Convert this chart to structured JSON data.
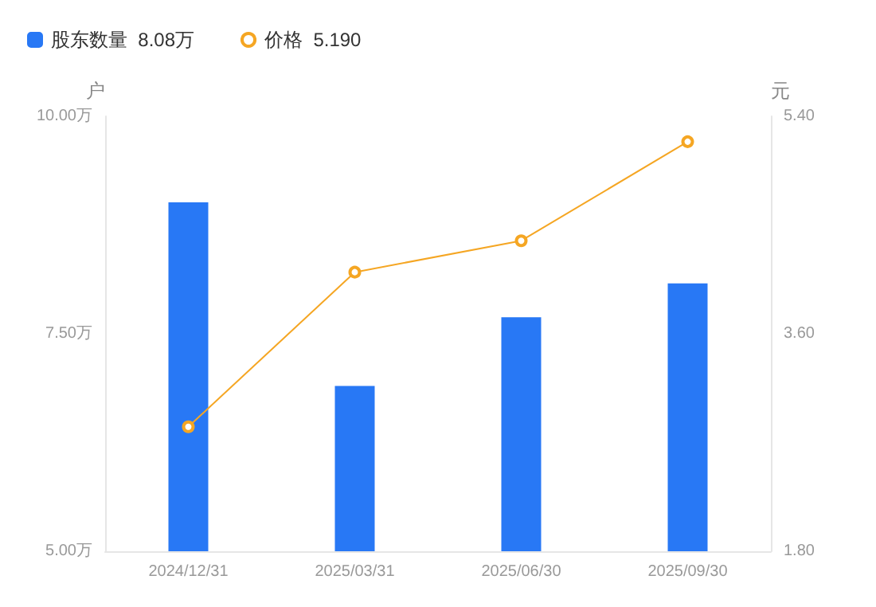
{
  "chart_data": {
    "type": "bar",
    "ylabel": "户",
    "y2label": "元",
    "categories": [
      "2024/12/31",
      "2025/03/31",
      "2025/06/30",
      "2025/09/30"
    ],
    "series": [
      {
        "name": "股东数量  8.08万",
        "color": "#2878f5",
        "values": [
          9.01,
          6.9,
          7.69,
          8.08
        ]
      },
      {
        "name": "价格  5.190",
        "type": "line",
        "axis": "y2",
        "color": "#f5a623",
        "values": [
          2.83,
          4.11,
          4.37,
          5.19
        ]
      }
    ],
    "ylim": [
      5,
      10
    ],
    "yticks": [
      {
        "value": 5,
        "label": "5.00万"
      },
      {
        "value": 7.5,
        "label": "7.50万"
      },
      {
        "value": 10,
        "label": "10.00万"
      }
    ],
    "y2lim": [
      1.8,
      5.4
    ],
    "y2ticks": [
      {
        "value": 1.8,
        "label": "1.80"
      },
      {
        "value": 3.6,
        "label": "3.60"
      },
      {
        "value": 5.4,
        "label": "5.40"
      }
    ],
    "legend": "top left",
    "grid": false,
    "marker": "circle"
  }
}
